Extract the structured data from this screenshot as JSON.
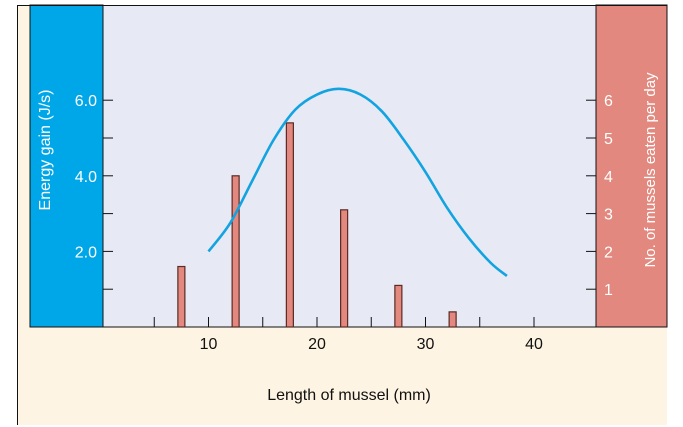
{
  "chart_data": {
    "type": "bar",
    "xlabel": "Length of mussel (mm)",
    "ylabel_left": "Energy gain (J/s)",
    "ylabel_right": "No. of mussels eaten per day",
    "xlim": [
      0,
      45
    ],
    "x_ticks": [
      10,
      20,
      30,
      40
    ],
    "x_tick_labels": [
      "10",
      "20",
      "30",
      "40"
    ],
    "y_left_lim": [
      0,
      8.0
    ],
    "y_left_ticks": [
      2.0,
      4.0,
      6.0
    ],
    "y_left_tick_labels": [
      "2.0",
      "4.0",
      "6.0"
    ],
    "y_left_minor_ticks": [
      1.0,
      3.0,
      5.0
    ],
    "y_right_lim": [
      0,
      8
    ],
    "y_right_ticks": [
      1,
      2,
      3,
      4,
      5,
      6
    ],
    "y_right_tick_labels": [
      "1",
      "2",
      "3",
      "4",
      "5",
      "6"
    ],
    "bars": {
      "axis": "right",
      "x": [
        7.5,
        12.5,
        17.5,
        22.5,
        27.5,
        32.5
      ],
      "values": [
        1.6,
        4.0,
        5.4,
        3.1,
        1.1,
        0.4
      ]
    },
    "curve": {
      "axis": "left",
      "type": "line",
      "x": [
        10,
        12,
        14,
        16,
        18,
        20,
        22,
        24,
        26,
        28,
        30,
        32,
        34,
        36,
        37.5
      ],
      "values": [
        2.0,
        2.75,
        3.85,
        4.95,
        5.75,
        6.15,
        6.3,
        6.15,
        5.7,
        4.95,
        4.1,
        3.15,
        2.35,
        1.7,
        1.35
      ]
    },
    "grid": false,
    "colors": {
      "plot_bg": "#E7EAF5",
      "page_bg": "#FDF4E3",
      "left_panel": "#00A7E8",
      "right_panel": "#E2887E",
      "bar_fill": "#E2887E",
      "bar_stroke": "#5A2A24",
      "curve": "#12A3E0",
      "axis_text": "#111111",
      "panel_text": "#FFFFFF"
    }
  }
}
